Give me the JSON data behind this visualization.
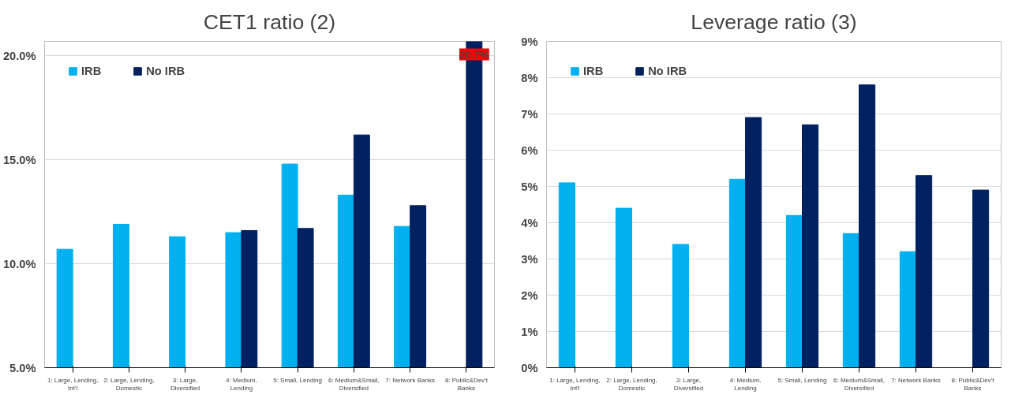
{
  "chart_data": [
    {
      "type": "bar",
      "title": "CET1 ratio (2)",
      "categories": [
        "1: Large, Lending,\nInt'l",
        "2: Large, Lending,\nDomestic",
        "3: Large,\nDiversified",
        "4: Medium,\nLending",
        "5: Small, Lending",
        "6: Medium&Small,\nDiversified",
        "7: Network Banks",
        "8: Public&Dev't\nBanks"
      ],
      "series": [
        {
          "name": "IRB",
          "color": "#00b0f0",
          "values": [
            10.7,
            11.9,
            11.3,
            11.5,
            14.8,
            13.3,
            11.8,
            null
          ]
        },
        {
          "name": "No IRB",
          "color": "#002060",
          "values": [
            null,
            null,
            null,
            11.6,
            11.7,
            16.2,
            12.8,
            20.7
          ],
          "value_labels": [
            null,
            null,
            null,
            null,
            null,
            null,
            null,
            "20.7%"
          ]
        }
      ],
      "ylim": [
        5,
        20.7
      ],
      "yticks": [
        {
          "value": 5,
          "label": "5.0%"
        },
        {
          "value": 10,
          "label": "10.0%"
        },
        {
          "value": 15,
          "label": "15.0%"
        },
        {
          "value": 20,
          "label": "20.0%"
        }
      ],
      "grid": "y",
      "legend": "top left"
    },
    {
      "type": "bar",
      "title": "Leverage ratio (3)",
      "categories": [
        "1: Large, Lending,\nInt'l",
        "2: Large, Lending,\nDomestic",
        "3: Large,\nDiversified",
        "4: Medium,\nLending",
        "5: Small, Lending",
        "6: Medium&Small,\nDiversified",
        "7: Network Banks",
        "8: Public&Dev't\nBanks"
      ],
      "series": [
        {
          "name": "IRB",
          "color": "#00b0f0",
          "values": [
            5.1,
            4.4,
            3.4,
            5.2,
            4.2,
            3.7,
            3.2,
            null
          ]
        },
        {
          "name": "No IRB",
          "color": "#002060",
          "values": [
            null,
            null,
            null,
            6.9,
            6.7,
            7.8,
            5.3,
            4.9
          ]
        }
      ],
      "ylim": [
        0,
        9
      ],
      "yticks": [
        {
          "value": 0,
          "label": "0%"
        },
        {
          "value": 1,
          "label": "1%"
        },
        {
          "value": 2,
          "label": "2%"
        },
        {
          "value": 3,
          "label": "3%"
        },
        {
          "value": 4,
          "label": "4%"
        },
        {
          "value": 5,
          "label": "5%"
        },
        {
          "value": 6,
          "label": "6%"
        },
        {
          "value": 7,
          "label": "7%"
        },
        {
          "value": 8,
          "label": "8%"
        },
        {
          "value": 9,
          "label": "9%"
        }
      ],
      "grid": "y",
      "legend": "top left"
    }
  ]
}
